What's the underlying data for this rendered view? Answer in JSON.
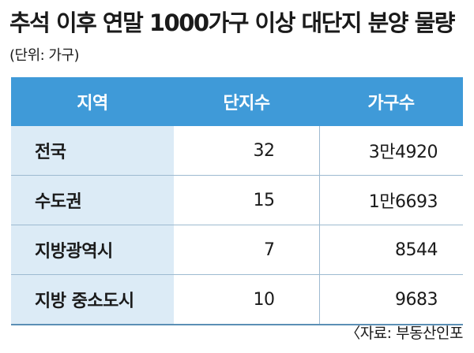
{
  "title": "추석 이후 연말 1000가구 이상 대단지 분양 물량",
  "unit": "(단위: 가구)",
  "source": "〈자료: 부동산인포",
  "chart_data": {
    "type": "table",
    "columns": [
      "지역",
      "단지수",
      "가구수"
    ],
    "rows": [
      {
        "region": "전국",
        "complexes": "32",
        "households": "3만4920"
      },
      {
        "region": "수도권",
        "complexes": "15",
        "households": "1만6693"
      },
      {
        "region": "지방광역시",
        "complexes": "7",
        "households": "8544"
      },
      {
        "region": "지방 중소도시",
        "complexes": "10",
        "households": "9683"
      }
    ]
  },
  "colors": {
    "header_bg": "#3f9ad8",
    "region_bg": "#dcebf6"
  }
}
